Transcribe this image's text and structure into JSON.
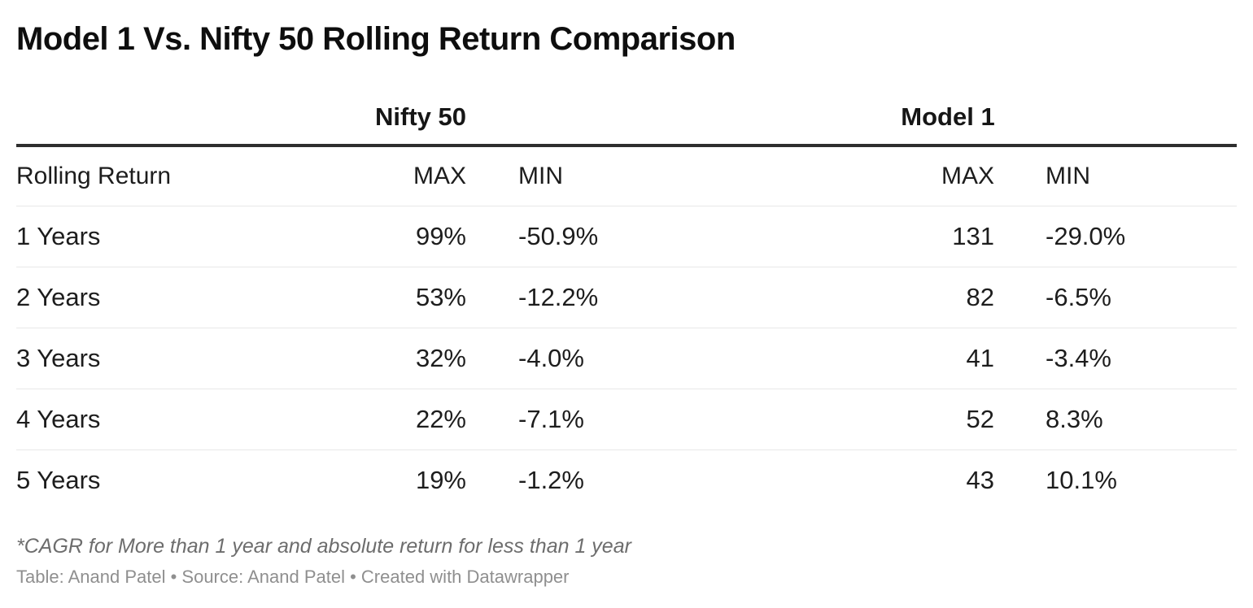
{
  "title": "Model 1 Vs. Nifty 50 Rolling Return Comparison",
  "table": {
    "groups": [
      {
        "label": "Nifty 50"
      },
      {
        "label": "Model 1"
      }
    ],
    "columns": {
      "rolling_return": "Rolling Return",
      "nifty_max": "MAX",
      "nifty_min": "MIN",
      "model_max": "MAX",
      "model_min": "MIN"
    },
    "rows": [
      {
        "period": "1 Years",
        "nifty_max": "99%",
        "nifty_min": "-50.9%",
        "model_max": "131",
        "model_min": "-29.0%"
      },
      {
        "period": "2 Years",
        "nifty_max": "53%",
        "nifty_min": "-12.2%",
        "model_max": "82",
        "model_min": "-6.5%"
      },
      {
        "period": "3 Years",
        "nifty_max": "32%",
        "nifty_min": "-4.0%",
        "model_max": "41",
        "model_min": "-3.4%"
      },
      {
        "period": "4 Years",
        "nifty_max": "22%",
        "nifty_min": "-7.1%",
        "model_max": "52",
        "model_min": "8.3%"
      },
      {
        "period": "5 Years",
        "nifty_max": "19%",
        "nifty_min": "-1.2%",
        "model_max": "43",
        "model_min": "10.1%"
      }
    ]
  },
  "footer": {
    "footnote": "*CAGR for More than 1 year and absolute return for less than 1 year",
    "attribution": "Table: Anand Patel • Source: Anand Patel • Created with Datawrapper"
  },
  "colors": {
    "background": "#ffffff",
    "title_text": "#0e0e0e",
    "body_text": "#1d1d1d",
    "thick_rule": "#2e2e2e",
    "row_divider": "#e8e8e8",
    "footnote_text": "#6d6d6d",
    "attribution_text": "#8f8f8f"
  },
  "chart_data": {
    "type": "table",
    "title": "Model 1 Vs. Nifty 50 Rolling Return Comparison",
    "column_groups": [
      "",
      "Nifty 50",
      "Nifty 50",
      "Model 1",
      "Model 1"
    ],
    "columns": [
      "Rolling Return",
      "Nifty 50 MAX",
      "Nifty 50 MIN",
      "Model 1 MAX",
      "Model 1 MIN"
    ],
    "rows": [
      [
        "1 Years",
        "99%",
        "-50.9%",
        "131",
        "-29.0%"
      ],
      [
        "2 Years",
        "53%",
        "-12.2%",
        "82",
        "-6.5%"
      ],
      [
        "3 Years",
        "32%",
        "-4.0%",
        "41",
        "-3.4%"
      ],
      [
        "4 Years",
        "22%",
        "-7.1%",
        "52",
        "8.3%"
      ],
      [
        "5 Years",
        "19%",
        "-1.2%",
        "43",
        "10.1%"
      ]
    ],
    "footnote": "*CAGR for More than 1 year and absolute return for less than 1 year",
    "attribution": "Table: Anand Patel • Source: Anand Patel • Created with Datawrapper"
  }
}
